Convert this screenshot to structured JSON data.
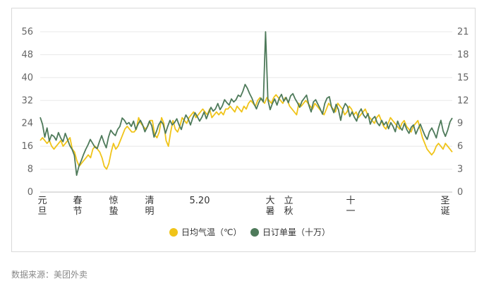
{
  "chart_data": {
    "type": "line",
    "title": "",
    "xlabel": "",
    "ylabel": "",
    "x_tick_labels": [
      "元旦",
      "春节",
      "惊蛰",
      "清明",
      "5.20",
      "大暑",
      "立秋",
      "十一",
      "圣诞"
    ],
    "y_left": {
      "ticks": [
        0,
        8,
        16,
        24,
        32,
        40,
        48,
        56
      ],
      "ylim": [
        0,
        56
      ]
    },
    "y_right": {
      "ticks": [
        0,
        3,
        6,
        9,
        12,
        15,
        18,
        21
      ],
      "ylim": [
        0,
        21
      ]
    },
    "grid": "horizontal",
    "legend_position": "bottom-center",
    "series": [
      {
        "name": "日均气温（℃）",
        "axis": "left",
        "color": "#f0c419",
        "values": [
          18,
          19,
          18,
          17,
          18,
          16,
          15,
          16,
          17,
          18,
          16,
          17,
          18,
          19,
          15,
          14,
          11,
          9,
          10,
          11,
          12,
          13,
          12,
          15,
          16,
          15,
          14,
          12,
          9,
          8,
          10,
          14,
          17,
          15,
          16,
          18,
          20,
          22,
          23,
          22,
          21,
          21,
          22,
          26,
          24,
          23,
          22,
          23,
          25,
          25,
          20,
          19,
          21,
          26,
          24,
          18,
          16,
          21,
          25,
          22,
          21,
          23,
          26,
          25,
          24,
          26,
          27,
          28,
          26,
          27,
          28,
          29,
          28,
          27,
          29,
          26,
          27,
          28,
          27,
          28,
          27,
          29,
          29,
          30,
          29,
          28,
          30,
          29,
          28,
          30,
          29,
          31,
          32,
          31,
          30,
          32,
          33,
          32,
          31,
          33,
          32,
          31,
          33,
          34,
          33,
          32,
          31,
          33,
          32,
          30,
          29,
          28,
          27,
          31,
          30,
          31,
          32,
          31,
          30,
          29,
          31,
          30,
          29,
          28,
          27,
          29,
          31,
          30,
          29,
          28,
          31,
          30,
          29,
          27,
          28,
          30,
          29,
          27,
          28,
          26,
          27,
          28,
          29,
          27,
          26,
          25,
          24,
          26,
          27,
          25,
          23,
          22,
          24,
          26,
          25,
          24,
          23,
          22,
          24,
          25,
          23,
          22,
          21,
          23,
          24,
          25,
          22,
          19,
          17,
          15,
          14,
          13,
          14,
          16,
          17,
          16,
          15,
          17,
          16,
          15,
          14
        ]
      },
      {
        "name": "日订单量（十万）",
        "axis": "right",
        "color": "#4e7a5a",
        "values": [
          9.8,
          8.9,
          7.2,
          8.4,
          6.7,
          7.5,
          7.3,
          6.8,
          7.8,
          7.1,
          6.6,
          7.7,
          6.9,
          6.1,
          5.6,
          4.8,
          2.2,
          3.4,
          4.1,
          4.9,
          5.6,
          6.2,
          6.9,
          6.4,
          5.9,
          5.7,
          6.6,
          7.4,
          6.5,
          5.8,
          7.2,
          8.1,
          7.7,
          7.4,
          8.2,
          8.6,
          9.7,
          9.4,
          8.9,
          9.1,
          8.6,
          9.3,
          8.2,
          8.9,
          9.4,
          8.8,
          7.9,
          8.5,
          9.3,
          8.7,
          7.2,
          7.9,
          8.8,
          9.3,
          8.9,
          7.7,
          8.6,
          9.4,
          8.8,
          9.1,
          9.6,
          8.8,
          8.2,
          9.3,
          10.1,
          9.6,
          8.8,
          9.7,
          10.4,
          9.9,
          9.3,
          9.8,
          10.5,
          9.6,
          10.4,
          11.1,
          10.6,
          10.9,
          11.6,
          10.8,
          11.3,
          12.1,
          11.7,
          11.4,
          12.2,
          11.8,
          12.1,
          12.7,
          12.5,
          13.2,
          14.1,
          13.6,
          12.9,
          12.3,
          11.5,
          10.9,
          11.7,
          12.3,
          11.8,
          21.0,
          12.1,
          10.8,
          11.6,
          12.2,
          11.4,
          12.3,
          12.8,
          11.9,
          12.4,
          11.7,
          12.6,
          12.9,
          12.2,
          11.7,
          11.1,
          11.9,
          12.3,
          12.7,
          11.4,
          10.5,
          11.8,
          12.1,
          11.5,
          10.9,
          10.2,
          11.6,
          12.3,
          12.5,
          11.1,
          10.4,
          11.5,
          10.8,
          9.4,
          10.9,
          11.6,
          11.2,
          9.9,
          10.5,
          9.8,
          9.3,
          10.4,
          10.9,
          10.1,
          9.7,
          10.3,
          8.9,
          9.6,
          9.9,
          9.1,
          8.7,
          9.4,
          8.8,
          9.2,
          8.3,
          9.1,
          8.6,
          7.9,
          9.3,
          8.5,
          8.1,
          9.0,
          8.2,
          7.7,
          8.5,
          8.8,
          7.6,
          8.3,
          8.9,
          8.1,
          7.4,
          6.9,
          7.9,
          8.4,
          7.8,
          7.1,
          8.4,
          9.4,
          8.0,
          7.3,
          8.1,
          9.2,
          9.7
        ]
      }
    ]
  },
  "legend": {
    "temperature_label": "日均气温（℃）",
    "orders_label": "日订单量（十万）"
  },
  "footer": {
    "source": "数据来源：美团外卖"
  }
}
